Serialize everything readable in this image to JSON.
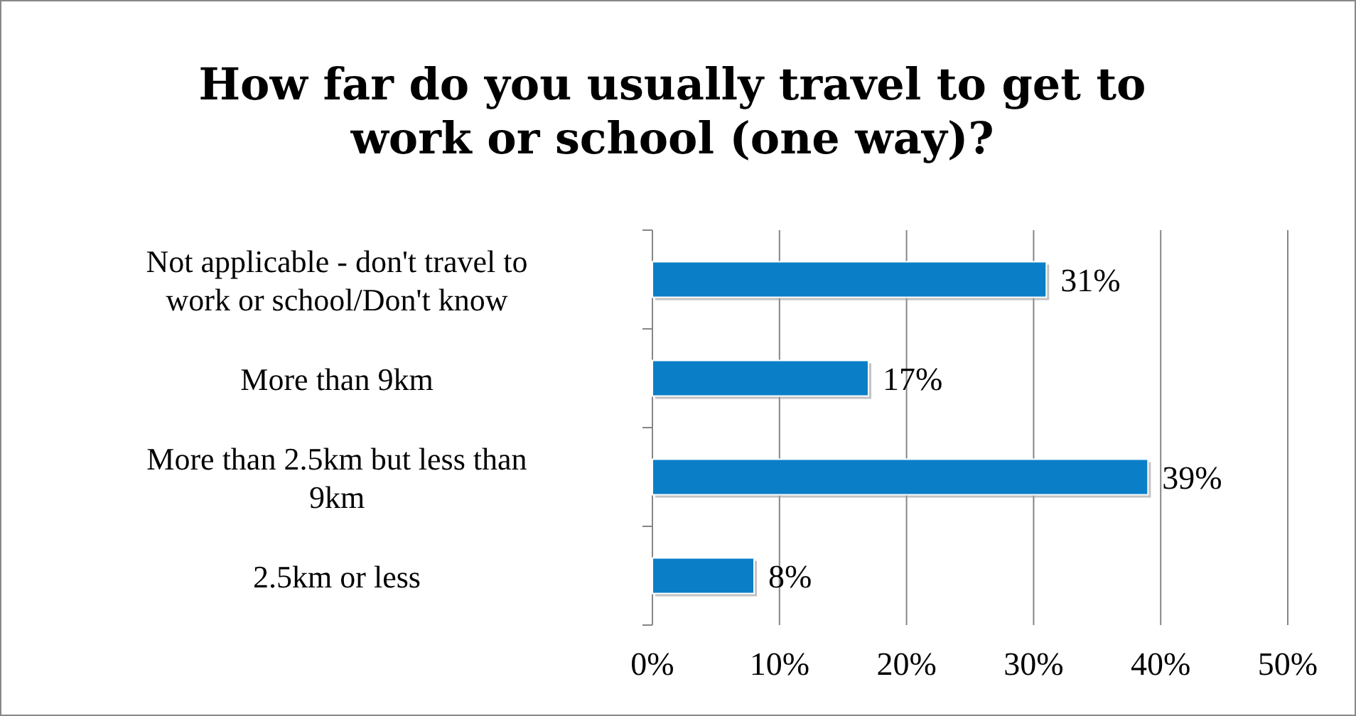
{
  "chart_data": {
    "type": "bar",
    "orientation": "horizontal",
    "title": "How far do you usually travel to get to work or school (one way)?",
    "categories": [
      "Not applicable - don't travel to work or school/Don't know",
      "More than 9km",
      "More than 2.5km but less than 9km",
      "2.5km or less"
    ],
    "values": [
      31,
      17,
      39,
      8
    ],
    "color": "#0a7fc7",
    "value_labels": [
      "31%",
      "17%",
      "39%",
      "8%"
    ],
    "xlim": [
      0,
      50
    ],
    "xticks": [
      {
        "value": 0,
        "label": "0%"
      },
      {
        "value": 10,
        "label": "10%"
      },
      {
        "value": 20,
        "label": "20%"
      },
      {
        "value": 30,
        "label": "30%"
      },
      {
        "value": 40,
        "label": "40%"
      },
      {
        "value": 50,
        "label": "50%"
      }
    ],
    "grid": "x"
  }
}
